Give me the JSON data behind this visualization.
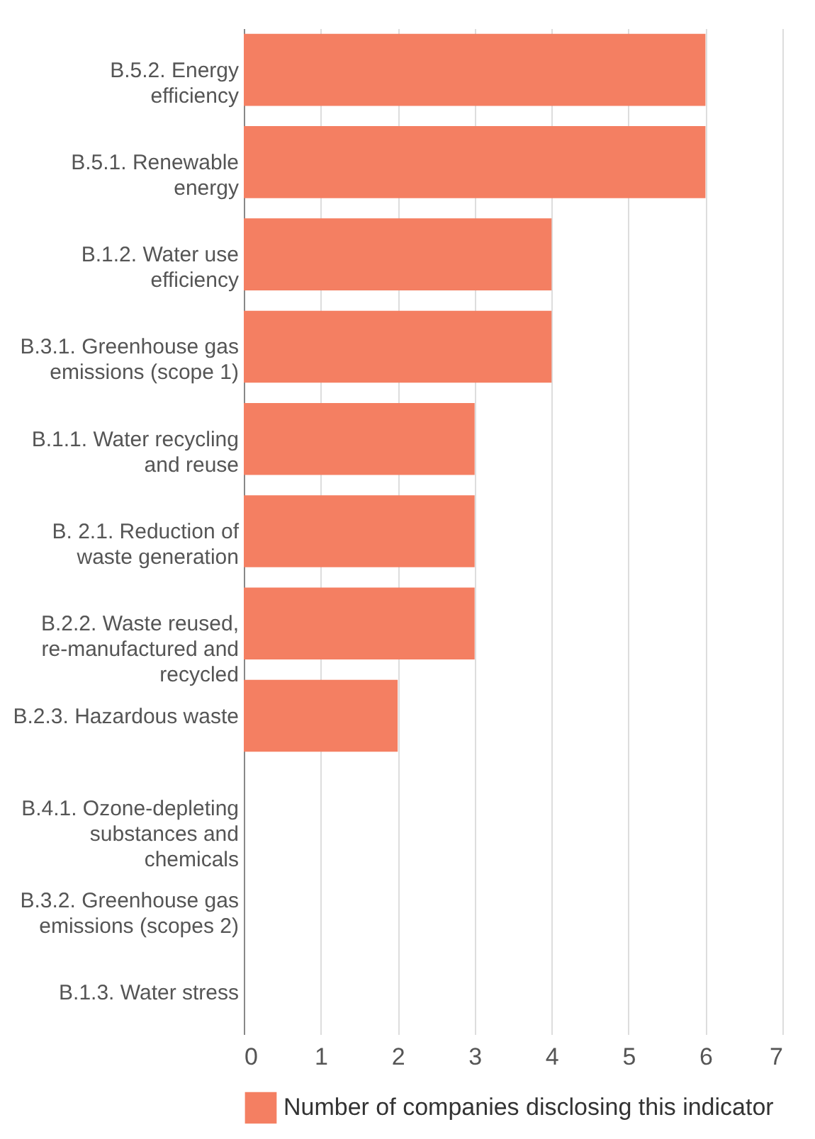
{
  "chart_data": {
    "type": "bar",
    "orientation": "horizontal",
    "categories": [
      "B.5.2. Energy efficiency",
      "B.5.1. Renewable energy",
      "B.1.2. Water use efficiency",
      "B.3.1. Greenhouse gas emissions (scope 1)",
      "B.1.1. Water recycling and reuse",
      "B. 2.1. Reduction of waste generation",
      "B.2.2. Waste reused, re-manufactured and recycled",
      "B.2.3. Hazardous waste",
      "B.4.1. Ozone-depleting substances and chemicals",
      "B.3.2. Greenhouse gas emissions (scopes 2)",
      "B.1.3. Water stress"
    ],
    "series": [
      {
        "name": "Number of companies disclosing this indicator",
        "color": "#f47f62",
        "values": [
          6,
          6,
          4,
          4,
          3,
          3,
          3,
          2,
          0,
          0,
          0
        ]
      }
    ],
    "xlim": [
      0,
      7
    ],
    "xticks": [
      0,
      1,
      2,
      3,
      4,
      5,
      6,
      7
    ],
    "grid": "x",
    "legend": "bottom"
  }
}
